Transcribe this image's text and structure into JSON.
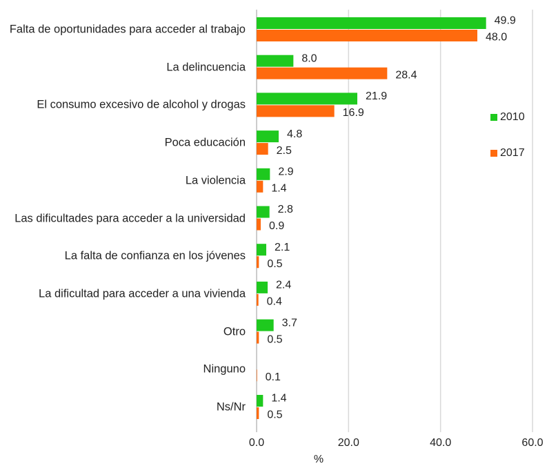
{
  "chart_data": {
    "type": "barh",
    "categories": [
      "Falta de oportunidades para acceder al trabajo",
      "La delincuencia",
      "El consumo excesivo de alcohol y drogas",
      "Poca educación",
      "La violencia",
      "Las dificultades para acceder a la universidad",
      "La falta de confianza en los jóvenes",
      "La dificultad para acceder a una vivienda",
      "Otro",
      "Ninguno",
      "Ns/Nr"
    ],
    "series": [
      {
        "name": "2010",
        "color": "#1ec91e",
        "values": [
          49.9,
          8,
          21.9,
          4.8,
          2.9,
          2.8,
          2.1,
          2.4,
          3.7,
          null,
          1.4
        ],
        "value_labels": [
          "49.9",
          "8.0",
          "21.9",
          "4.8",
          "2.9",
          "2.8",
          "2.1",
          "2.4",
          "3.7",
          null,
          "1.4"
        ]
      },
      {
        "name": "2017",
        "color": "#ff6a0e",
        "values": [
          48,
          28.4,
          16.9,
          2.5,
          1.4,
          0.9,
          0.5,
          0.4,
          0.5,
          0.1,
          0.5
        ],
        "value_labels": [
          "48.0",
          "28.4",
          "16.9",
          "2.5",
          "1.4",
          "0.9",
          "0.5",
          "0.4",
          "0.5",
          "0.1",
          "0.5"
        ]
      }
    ],
    "xlim": [
      0,
      60
    ],
    "xticks": [
      {
        "value": 0,
        "label": "0.0"
      },
      {
        "value": 20,
        "label": "20.0"
      },
      {
        "value": 40,
        "label": "40.0"
      },
      {
        "value": 60,
        "label": "60.0"
      }
    ],
    "xlabel": "%",
    "grid": true,
    "legend": "right"
  }
}
